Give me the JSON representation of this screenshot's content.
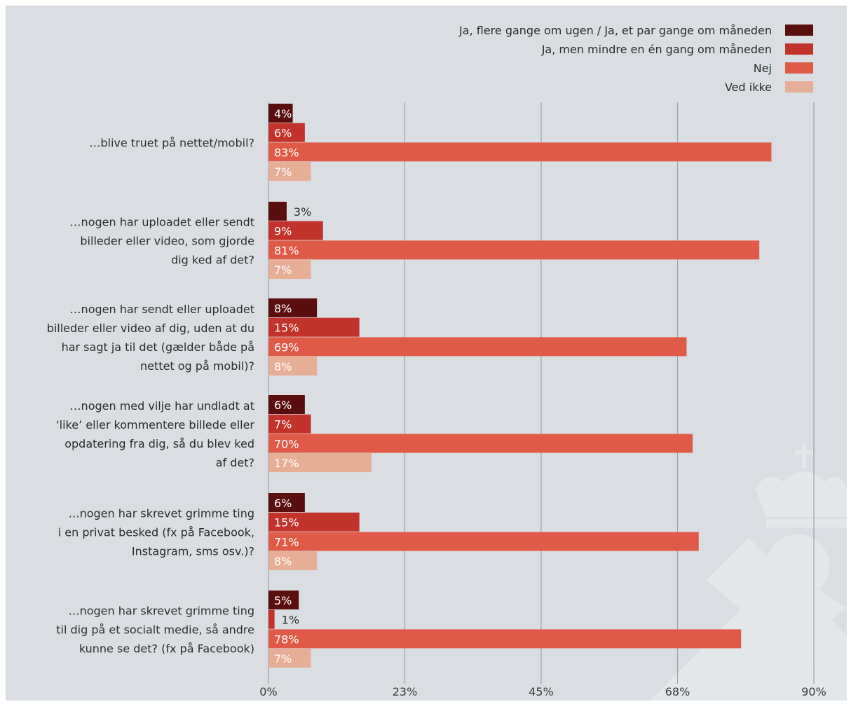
{
  "chart_data": {
    "type": "bar",
    "orientation": "horizontal",
    "grid": true,
    "legend_position": "top-right",
    "xlim": [
      0,
      90
    ],
    "ticks": [
      "0%",
      "23%",
      "45%",
      "68%",
      "90%"
    ],
    "tick_values": [
      0,
      22.5,
      45,
      67.5,
      90
    ],
    "categories": [
      "…blive truet på nettet/mobil?",
      "…nogen har uploadet eller sendt billeder eller video, som gjorde dig ked af det?",
      "…nogen har sendt eller uploadet billeder eller video af dig, uden at du har sagt ja til det (gælder både på nettet og på mobil)?",
      "…nogen med vilje har undladt at ‘like’ eller kommentere billede eller opdatering fra dig, så du blev ked af det?",
      "…nogen har skrevet grimme ting i en privat besked (fx på Facebook, Instagram, sms osv.)?",
      "…nogen har skrevet grimme ting til dig på et socialt medie, så andre kunne se det? (fx på Facebook)"
    ],
    "category_lines": [
      [
        "…blive truet på nettet/mobil?"
      ],
      [
        "…nogen har uploadet eller sendt",
        "billeder eller video, som gjorde",
        "dig ked af det?"
      ],
      [
        "…nogen har sendt eller uploadet",
        "billeder eller video af dig, uden at du",
        "har sagt ja til det (gælder både på",
        "nettet og på mobil)?"
      ],
      [
        "…nogen med vilje har undladt at",
        "‘like’ eller kommentere billede eller",
        "opdatering fra dig, så du blev ked",
        "af det?"
      ],
      [
        "…nogen har skrevet grimme ting",
        "i en privat besked (fx på Facebook,",
        "Instagram, sms osv.)?"
      ],
      [
        "…nogen har skrevet grimme ting",
        "til dig på et socialt medie, så andre",
        "kunne se det? (fx på Facebook)"
      ]
    ],
    "series": [
      {
        "name": "Ja, flere gange om ugen / Ja, et par gange om måneden",
        "color": "#5a0f0e",
        "values": [
          4,
          3,
          8,
          6,
          6,
          5
        ]
      },
      {
        "name": "Ja, men mindre en én gang om måneden",
        "color": "#c2332c",
        "values": [
          6,
          9,
          15,
          7,
          15,
          1
        ]
      },
      {
        "name": "Nej",
        "color": "#e05a48",
        "values": [
          83,
          81,
          69,
          70,
          71,
          78
        ]
      },
      {
        "name": "Ved ikke",
        "color": "#e7ae97",
        "values": [
          7,
          7,
          8,
          17,
          8,
          7
        ]
      }
    ],
    "value_labels": [
      [
        "4%",
        "3%",
        "8%",
        "6%",
        "6%",
        "5%"
      ],
      [
        "6%",
        "9%",
        "15%",
        "7%",
        "15%",
        "1%"
      ],
      [
        "83%",
        "81%",
        "69%",
        "70%",
        "71%",
        "78%"
      ],
      [
        "7%",
        "7%",
        "8%",
        "17%",
        "8%",
        "7%"
      ]
    ]
  }
}
